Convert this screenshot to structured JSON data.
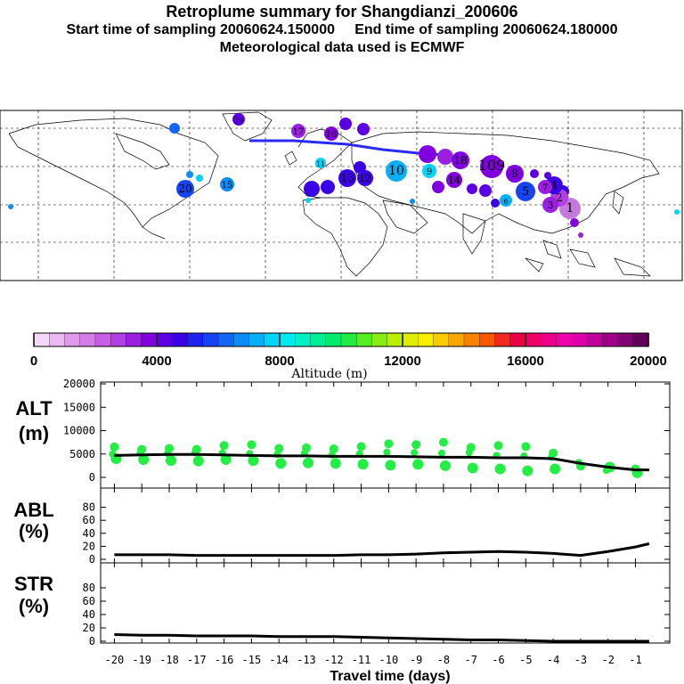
{
  "title": {
    "line1": "Retroplume summary for Shangdianzi_200606",
    "line2": "Start time of sampling 20060624.150000     End time of sampling 20060624.180000",
    "line3": "Meteorological data used is ECMWF"
  },
  "colorbar": {
    "label": "Altitude (m)",
    "ticks": [
      "0",
      "4000",
      "8000",
      "12000",
      "16000",
      "20000"
    ],
    "colors": [
      "#f4d8f7",
      "#ecb8f2",
      "#e199ee",
      "#d67ce8",
      "#c75ee5",
      "#b23fe1",
      "#9b1fe0",
      "#8000e0",
      "#5c00e3",
      "#3a00e6",
      "#2222ee",
      "#1744f2",
      "#1167f4",
      "#0b8cf6",
      "#06b0f8",
      "#02d3f8",
      "#00ecf0",
      "#00f0c4",
      "#00ee96",
      "#00ec6a",
      "#22ec44",
      "#55ee22",
      "#88ee11",
      "#bbee00",
      "#ddee00",
      "#f8ee00",
      "#f8cc00",
      "#f8a800",
      "#f88200",
      "#f85a00",
      "#f02a1e",
      "#ee0044",
      "#ee0066",
      "#ee0088",
      "#ee00aa",
      "#dd00aa",
      "#c0009a",
      "#a00088",
      "#800070",
      "#600058"
    ]
  },
  "map": {
    "trajectory_labels": [
      {
        "t": "1",
        "c": "#c47adc"
      },
      {
        "t": "2",
        "c": "#b23fe1"
      },
      {
        "t": "3",
        "c": "#9b1fe0"
      },
      {
        "t": "4",
        "c": "#3a00e6"
      },
      {
        "t": "5",
        "c": "#1744f2"
      },
      {
        "t": "6",
        "c": "#06b0f8"
      },
      {
        "t": "7",
        "c": "#9b1fe0"
      },
      {
        "t": "8",
        "c": "#8000e0"
      },
      {
        "t": "9",
        "c": "#02d3f8"
      },
      {
        "t": "10",
        "c": "#06b0f8"
      },
      {
        "t": "11",
        "c": "#02d3f8"
      },
      {
        "t": "12",
        "c": "#3a00e6"
      },
      {
        "t": "13",
        "c": "#3a00e6"
      },
      {
        "t": "14",
        "c": "#8000e0"
      },
      {
        "t": "15",
        "c": "#0b8cf6"
      },
      {
        "t": "16",
        "c": "#8000e0"
      },
      {
        "t": "17",
        "c": "#9b1fe0"
      },
      {
        "t": "18",
        "c": "#8000e0"
      },
      {
        "t": "19",
        "c": "#5c00e3"
      },
      {
        "t": "20",
        "c": "#1744f2"
      },
      {
        "t": "109",
        "c": "#8000e0"
      }
    ]
  },
  "chart_data": [
    {
      "type": "scatter",
      "panel": "ALT",
      "ylabel": "ALT\n(m)",
      "ylim": [
        0,
        20000
      ],
      "yticks": [
        "0",
        "5000",
        "10000",
        "15000",
        "20000"
      ],
      "mean_line": {
        "x": [
          -20,
          -19,
          -18,
          -17,
          -16,
          -15,
          -14,
          -13,
          -12,
          -11,
          -10,
          -9,
          -8,
          -7,
          -6,
          -5,
          -4,
          -3,
          -2,
          -1,
          -0.5
        ],
        "y": [
          4700,
          4800,
          4900,
          4900,
          4800,
          4700,
          4600,
          4600,
          4500,
          4500,
          4500,
          4400,
          4300,
          4300,
          4200,
          4200,
          4000,
          3000,
          2200,
          1600,
          1600
        ]
      },
      "points_x": [
        -20,
        -20,
        -20,
        -19,
        -19,
        -19,
        -18,
        -18,
        -18,
        -17,
        -17,
        -17,
        -16,
        -16,
        -16,
        -15,
        -15,
        -15,
        -14,
        -14,
        -14,
        -13,
        -13,
        -13,
        -12,
        -12,
        -12,
        -11,
        -11,
        -11,
        -10,
        -10,
        -10,
        -9,
        -9,
        -9,
        -8,
        -8,
        -8,
        -7,
        -7,
        -7,
        -6,
        -6,
        -6,
        -5,
        -5,
        -5,
        -4,
        -4,
        -4,
        -3,
        -3,
        -2,
        -2,
        -1,
        -1
      ],
      "points_y": [
        5000,
        6500,
        4000,
        5200,
        6000,
        3800,
        5100,
        6200,
        3600,
        5300,
        6000,
        3500,
        5200,
        6800,
        3800,
        5100,
        7000,
        3600,
        4900,
        6200,
        3000,
        5200,
        6300,
        3100,
        4800,
        6100,
        3000,
        5000,
        6600,
        2800,
        5400,
        7200,
        2600,
        5300,
        7000,
        2800,
        5200,
        7500,
        2500,
        5300,
        6400,
        2000,
        4700,
        6800,
        1800,
        4600,
        6600,
        1400,
        4300,
        5200,
        1800,
        3200,
        2400,
        2200,
        1500,
        1800,
        1000
      ],
      "point_color": "#22ee44",
      "xlabel": ""
    },
    {
      "type": "line",
      "panel": "ABL",
      "ylabel": "ABL\n(%)",
      "ylim": [
        0,
        100
      ],
      "yticks": [
        "0",
        "20",
        "40",
        "60",
        "80"
      ],
      "x": [
        -20,
        -19,
        -18,
        -17,
        -16,
        -15,
        -14,
        -13,
        -12,
        -11,
        -10,
        -9,
        -8,
        -7,
        -6,
        -5,
        -4,
        -3,
        -2,
        -1,
        -0.5
      ],
      "y": [
        7,
        7,
        7,
        6,
        6,
        6,
        6,
        6,
        6,
        7,
        7,
        8,
        10,
        11,
        12,
        11,
        9,
        6,
        12,
        19,
        24
      ]
    },
    {
      "type": "line",
      "panel": "STR",
      "ylabel": "STR\n(%)",
      "ylim": [
        0,
        100
      ],
      "yticks": [
        "0",
        "20",
        "40",
        "60",
        "80"
      ],
      "x": [
        -20,
        -19,
        -18,
        -17,
        -16,
        -15,
        -14,
        -13,
        -12,
        -11,
        -10,
        -9,
        -8,
        -7,
        -6,
        -5,
        -4,
        -3,
        -2,
        -1,
        -0.5
      ],
      "y": [
        10,
        9,
        9,
        8,
        8,
        8,
        7,
        7,
        7,
        6,
        5,
        4,
        3,
        2,
        2,
        1,
        0,
        0,
        0,
        0,
        0
      ],
      "xticks": [
        "-20",
        "-19",
        "-18",
        "-17",
        "-16",
        "-15",
        "-14",
        "-13",
        "-12",
        "-11",
        "-10",
        "-9",
        "-8",
        "-7",
        "-6",
        "-5",
        "-4",
        "-3",
        "-2",
        "-1"
      ],
      "xlabel": "Travel time (days)"
    }
  ]
}
